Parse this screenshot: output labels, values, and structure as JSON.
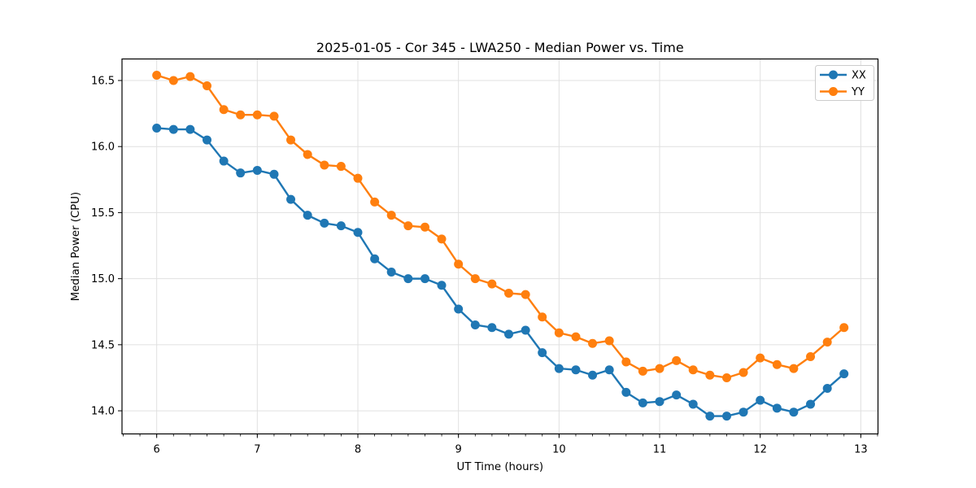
{
  "chart_data": {
    "type": "line",
    "title": "2025-01-05 - Cor 345 - LWA250 - Median Power vs. Time",
    "xlabel": "UT Time (hours)",
    "ylabel": "Median Power (CPU)",
    "xlim": [
      5.655,
      13.171
    ],
    "ylim": [
      13.825,
      16.663
    ],
    "x_ticks": [
      6,
      7,
      8,
      9,
      10,
      11,
      12,
      13
    ],
    "y_ticks": [
      14.0,
      14.5,
      15.0,
      15.5,
      16.0,
      16.5
    ],
    "x_minor_interval": 0.166667,
    "grid": true,
    "legend_position": "upper right",
    "x": [
      6.0,
      6.167,
      6.333,
      6.5,
      6.667,
      6.833,
      7.0,
      7.167,
      7.333,
      7.5,
      7.667,
      7.833,
      8.0,
      8.167,
      8.333,
      8.5,
      8.667,
      8.833,
      9.0,
      9.167,
      9.333,
      9.5,
      9.667,
      9.833,
      10.0,
      10.167,
      10.333,
      10.5,
      10.667,
      10.833,
      11.0,
      11.167,
      11.333,
      11.5,
      11.667,
      11.833,
      12.0,
      12.167,
      12.333,
      12.5,
      12.667,
      12.833
    ],
    "series": [
      {
        "name": "XX",
        "color": "#1f77b4",
        "values": [
          16.14,
          16.13,
          16.13,
          16.05,
          15.89,
          15.8,
          15.82,
          15.79,
          15.6,
          15.48,
          15.42,
          15.4,
          15.35,
          15.15,
          15.05,
          15.0,
          15.0,
          14.95,
          14.77,
          14.65,
          14.63,
          14.58,
          14.61,
          14.44,
          14.32,
          14.31,
          14.27,
          14.31,
          14.14,
          14.06,
          14.07,
          14.12,
          14.05,
          13.96,
          13.96,
          13.99,
          14.08,
          14.02,
          13.99,
          14.05,
          14.17,
          14.28
        ]
      },
      {
        "name": "YY",
        "color": "#ff7f0e",
        "values": [
          16.54,
          16.5,
          16.53,
          16.46,
          16.28,
          16.24,
          16.24,
          16.23,
          16.05,
          15.94,
          15.86,
          15.85,
          15.76,
          15.58,
          15.48,
          15.4,
          15.39,
          15.3,
          15.11,
          15.0,
          14.96,
          14.89,
          14.88,
          14.71,
          14.59,
          14.56,
          14.51,
          14.53,
          14.37,
          14.3,
          14.32,
          14.38,
          14.31,
          14.27,
          14.25,
          14.29,
          14.4,
          14.35,
          14.32,
          14.41,
          14.52,
          14.63
        ]
      }
    ]
  },
  "legend": {
    "items": [
      {
        "label": "XX",
        "color": "#1f77b4"
      },
      {
        "label": "YY",
        "color": "#ff7f0e"
      }
    ]
  },
  "style_colors": {
    "spine": "#000000",
    "grid": "#e0e0e0",
    "tick": "#000000",
    "legend_border": "#cccccc",
    "legend_background": "rgba(255,255,255,0.85)"
  }
}
